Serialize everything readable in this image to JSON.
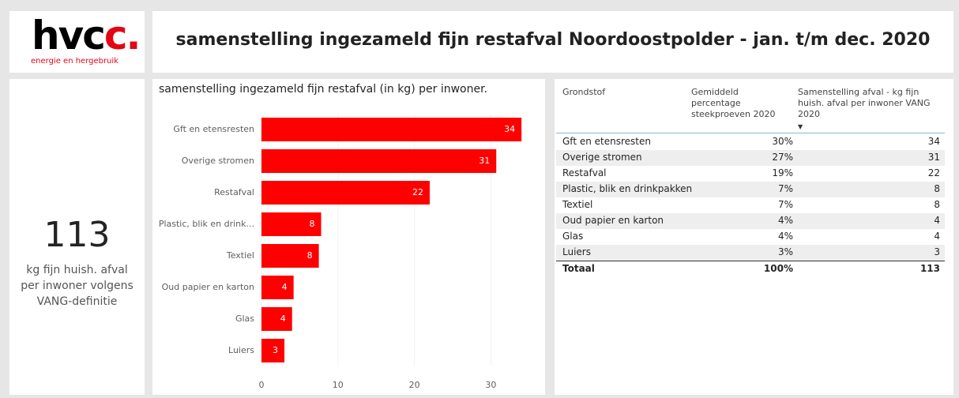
{
  "header": {
    "logo": "hvc",
    "logo_accent": "c.",
    "logo_tagline": "energie en hergebruik",
    "title": "samenstelling ingezameld fijn restafval Noordoostpolder - jan. t/m dec. 2020"
  },
  "kpi": {
    "value": "113",
    "caption_lines": [
      "kg fijn huish. afval",
      "per inwoner volgens",
      "VANG-definitie"
    ]
  },
  "chart_data": {
    "type": "bar",
    "orientation": "horizontal",
    "title": "samenstelling ingezameld fijn restafval (in kg) per inwoner.",
    "categories": [
      "Gft en etensresten",
      "Overige stromen",
      "Restafval",
      "Plastic, blik en drink...",
      "Textiel",
      "Oud papier en karton",
      "Glas",
      "Luiers"
    ],
    "values": [
      34,
      30.7,
      22,
      7.8,
      7.5,
      4.2,
      4,
      3
    ],
    "value_labels": [
      "34",
      "31",
      "22",
      "8",
      "8",
      "4",
      "4",
      "3"
    ],
    "color": "#ff0000",
    "xlim": [
      0,
      34.5
    ],
    "xticks": [
      0,
      10,
      20,
      30
    ],
    "grid": true
  },
  "table": {
    "columns": [
      "Grondstof",
      "Gemiddeld percentage steekproeven 2020",
      "Samenstelling afval - kg fijn huish. afval per inwoner VANG 2020"
    ],
    "rows": [
      [
        "Gft en etensresten",
        "30%",
        "34"
      ],
      [
        "Overige stromen",
        "27%",
        "31"
      ],
      [
        "Restafval",
        "19%",
        "22"
      ],
      [
        "Plastic, blik en drinkpakken",
        "7%",
        "8"
      ],
      [
        "Textiel",
        "7%",
        "8"
      ],
      [
        "Oud papier en karton",
        "4%",
        "4"
      ],
      [
        "Glas",
        "4%",
        "4"
      ],
      [
        "Luiers",
        "3%",
        "3"
      ]
    ],
    "total": [
      "Totaal",
      "100%",
      "113"
    ]
  }
}
